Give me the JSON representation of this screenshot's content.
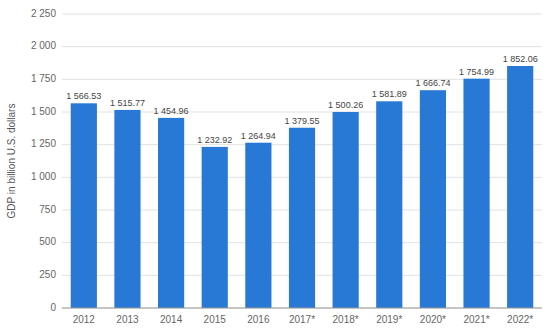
{
  "chart_data": {
    "type": "bar",
    "ylabel": "GDP in billion U.S. dollars",
    "categories": [
      "2012",
      "2013",
      "2014",
      "2015",
      "2016",
      "2017*",
      "2018*",
      "2019*",
      "2020*",
      "2021*",
      "2022*"
    ],
    "values": [
      1566.53,
      1515.77,
      1454.96,
      1232.92,
      1264.94,
      1379.55,
      1500.26,
      1581.89,
      1666.74,
      1754.99,
      1852.06
    ],
    "value_labels": [
      "1 566.53",
      "1 515.77",
      "1 454.96",
      "1 232.92",
      "1 264.94",
      "1 379.55",
      "1 500.26",
      "1 581.89",
      "1 666.74",
      "1 754.99",
      "1 852.06"
    ],
    "data_labels": true,
    "color": "#2878d6",
    "ylim": [
      0,
      2250
    ],
    "yticks": [
      0,
      250,
      500,
      750,
      {
        "value": 1000,
        "label": "1 000"
      },
      {
        "value": 1250,
        "label": "1 250"
      },
      {
        "value": 1500,
        "label": "1 500"
      },
      {
        "value": 1750,
        "label": "1 750"
      },
      {
        "value": 2000,
        "label": "2 000"
      },
      {
        "value": 2250,
        "label": "2 250"
      }
    ],
    "grid": true
  }
}
